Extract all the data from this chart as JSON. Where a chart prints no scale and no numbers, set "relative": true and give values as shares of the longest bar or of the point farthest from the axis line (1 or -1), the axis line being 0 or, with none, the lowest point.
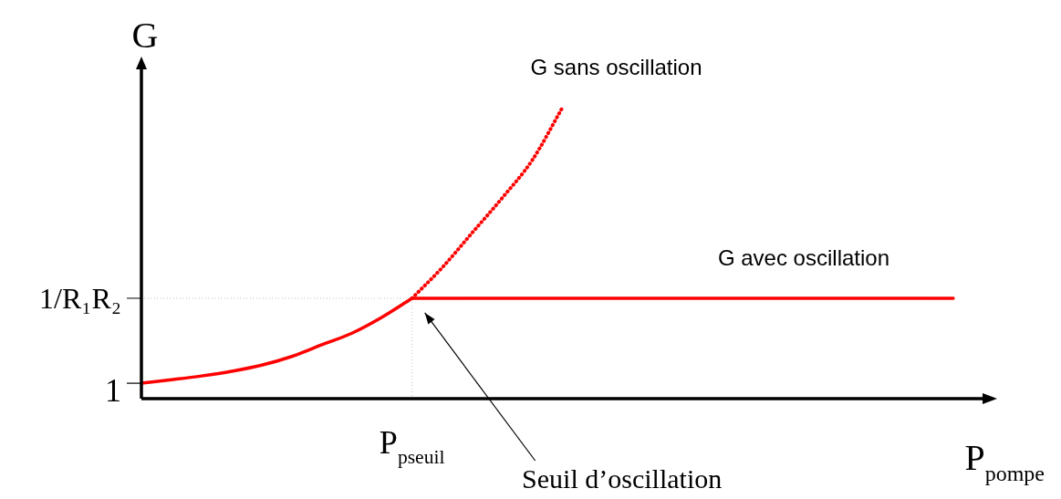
{
  "chart_data": {
    "type": "line",
    "relative": true,
    "xlabel": "P$_{pompe}$",
    "ylabel": "G",
    "categories": [
      null,
      null,
      null,
      null,
      null,
      null,
      null,
      null,
      null,
      null,
      null,
      null,
      null,
      null,
      null,
      null,
      null,
      null,
      null,
      null,
      null,
      null,
      null,
      null,
      null,
      null,
      null,
      null
    ],
    "series": [
      {
        "color": "#ff0000",
        "line_style": "solid",
        "values": [
          0.053,
          0.065,
          0.078,
          0.094,
          0.115,
          0.145,
          0.185,
          0.225,
          0.28,
          0.345,
          null,
          null,
          null,
          null,
          null,
          null,
          null,
          null,
          null,
          null,
          null,
          null,
          null,
          null,
          null,
          null,
          null,
          null
        ]
      },
      {
        "name": "G sans oscillation",
        "color": "#ff0000",
        "line_style": "dotted",
        "values": [
          null,
          null,
          null,
          null,
          null,
          null,
          null,
          null,
          null,
          0.345,
          0.45,
          0.57,
          0.69,
          0.82,
          1.0,
          null,
          null,
          null,
          null,
          null,
          null,
          null,
          null,
          null,
          null,
          null,
          null,
          null
        ]
      },
      {
        "name": "G avec oscillation",
        "color": "#ff0000",
        "line_style": "solid",
        "values": [
          null,
          null,
          null,
          null,
          null,
          null,
          null,
          null,
          null,
          0.345,
          0.345,
          0.345,
          0.345,
          0.345,
          0.345,
          0.345,
          0.345,
          0.345,
          0.345,
          0.345,
          0.345,
          0.345,
          0.345,
          0.345,
          0.345,
          0.345,
          0.345,
          0.345
        ]
      }
    ],
    "ref_lines": [
      {
        "axis": "y",
        "value": 0.345,
        "label": "1/R₁R₂",
        "color": "#808080",
        "line_style": "dotted"
      }
    ],
    "annotations": [
      "1",
      "P$_{pseuil}$",
      "Seuil d’oscillation"
    ]
  }
}
